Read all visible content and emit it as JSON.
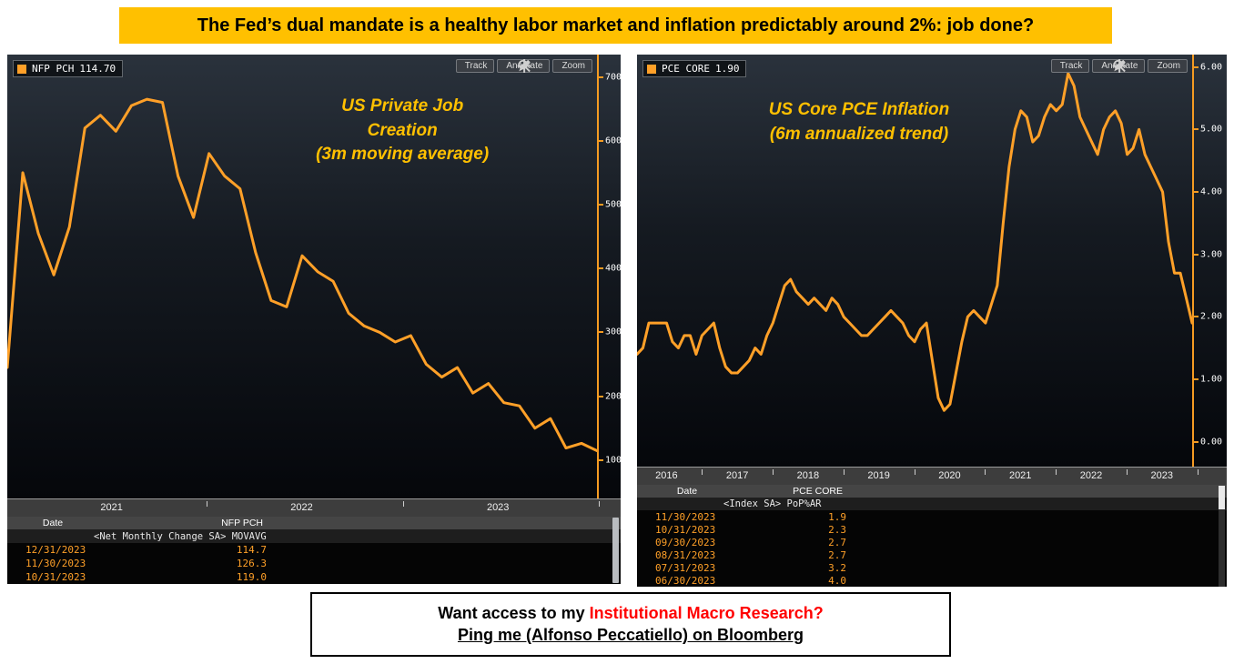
{
  "top_banner": {
    "text": "The Fed’s dual mandate is a healthy labor market and inflation predictably around 2%: job done?"
  },
  "toolbar": {
    "track": "Track",
    "annotate": "Annotate",
    "zoom": "Zoom"
  },
  "left_panel": {
    "legend_name": "NFP PCH",
    "legend_value": "114.70",
    "title_line1": "US Private Job Creation",
    "title_line2": "(3m moving average)",
    "table": {
      "col_date": "Date",
      "col_series": "NFP PCH",
      "sub_header": "<Net Monthly Change SA> MOVAVG",
      "rows": [
        [
          "12/31/2023",
          "114.7"
        ],
        [
          "11/30/2023",
          "126.3"
        ],
        [
          "10/31/2023",
          "119.0"
        ]
      ]
    }
  },
  "right_panel": {
    "legend_name": "PCE CORE",
    "legend_value": "1.90",
    "title_line1": "US Core PCE Inflation",
    "title_line2": "(6m annualized trend)",
    "table": {
      "col_date": "Date",
      "col_series": "PCE CORE",
      "sub_header": "<Index SA> PoP%AR",
      "rows": [
        [
          "11/30/2023",
          "1.9"
        ],
        [
          "10/31/2023",
          "2.3"
        ],
        [
          "09/30/2023",
          "2.7"
        ],
        [
          "08/31/2023",
          "2.7"
        ],
        [
          "07/31/2023",
          "3.2"
        ],
        [
          "06/30/2023",
          "4.0"
        ]
      ]
    }
  },
  "bottom_banner": {
    "line1_prefix": "Want access to my ",
    "line1_highlight": "Institutional Macro Research?",
    "line2": "Ping me (Alfonso Peccatiello) on Bloomberg"
  },
  "colors": {
    "accent_orange": "#FFA028",
    "banner_yellow": "#FFC000",
    "highlight_red": "#FF0000",
    "chart_title_yellow": "#FFC000"
  },
  "chart_data": [
    {
      "type": "line",
      "title": "US Private Job Creation (3m moving average)",
      "xlabel": "",
      "ylabel": "",
      "x_start": "2020-10",
      "x_freq": "monthly",
      "series": [
        {
          "name": "NFP PCH",
          "values": [
            245,
            550,
            455,
            390,
            465,
            620,
            640,
            615,
            655,
            665,
            660,
            545,
            480,
            580,
            545,
            525,
            425,
            350,
            340,
            420,
            395,
            380,
            330,
            310,
            300,
            285,
            295,
            250,
            230,
            245,
            205,
            220,
            190,
            185,
            150,
            165,
            119.0,
            126.3,
            114.7
          ]
        }
      ],
      "last_value": 114.7,
      "ylim": [
        40,
        735
      ],
      "y_ticks": [
        700,
        600,
        500,
        400,
        300,
        200,
        100
      ],
      "y_tick_labels": [
        "700",
        "600",
        "500",
        "400",
        "300",
        "200",
        "100"
      ],
      "x_ticks": [
        {
          "label": "2021",
          "pos": 0.17
        },
        {
          "label": "2022",
          "pos": 0.48
        },
        {
          "label": "2023",
          "pos": 0.8
        }
      ],
      "x_boundaries": [
        0.325,
        0.645,
        0.965
      ],
      "grid": false,
      "legend_position": "top-left",
      "line_color": "#FFA028"
    },
    {
      "type": "line",
      "title": "US Core PCE Inflation (6m annualized trend)",
      "xlabel": "",
      "ylabel": "",
      "x_start": "2016-01",
      "x_freq": "monthly",
      "series": [
        {
          "name": "PCE CORE",
          "values": [
            1.4,
            1.5,
            1.9,
            1.9,
            1.9,
            1.9,
            1.6,
            1.5,
            1.7,
            1.7,
            1.4,
            1.7,
            1.8,
            1.9,
            1.5,
            1.2,
            1.1,
            1.1,
            1.2,
            1.3,
            1.5,
            1.4,
            1.7,
            1.9,
            2.2,
            2.5,
            2.6,
            2.4,
            2.3,
            2.2,
            2.3,
            2.2,
            2.1,
            2.3,
            2.2,
            2.0,
            1.9,
            1.8,
            1.7,
            1.7,
            1.8,
            1.9,
            2.0,
            2.1,
            2.0,
            1.9,
            1.7,
            1.6,
            1.8,
            1.9,
            1.3,
            0.7,
            0.5,
            0.6,
            1.1,
            1.6,
            2.0,
            2.1,
            2.0,
            1.9,
            2.2,
            2.5,
            3.5,
            4.4,
            5.0,
            5.3,
            5.2,
            4.8,
            4.9,
            5.2,
            5.4,
            5.3,
            5.4,
            5.9,
            5.7,
            5.2,
            5.0,
            4.8,
            4.6,
            5.0,
            5.2,
            5.3,
            5.1,
            4.6,
            4.7,
            5.0,
            4.6,
            4.4,
            4.2,
            4.0,
            3.2,
            2.7,
            2.7,
            2.3,
            1.9
          ]
        }
      ],
      "last_value": 1.9,
      "ylim": [
        -0.4,
        6.2
      ],
      "y_ticks": [
        6,
        5,
        4,
        3,
        2,
        1,
        0
      ],
      "y_tick_labels": [
        "6.00",
        "5.00",
        "4.00",
        "3.00",
        "2.00",
        "1.00",
        "0.00"
      ],
      "x_ticks": [
        {
          "label": "2016",
          "pos": 0.05
        },
        {
          "label": "2017",
          "pos": 0.17
        },
        {
          "label": "2018",
          "pos": 0.29
        },
        {
          "label": "2019",
          "pos": 0.41
        },
        {
          "label": "2020",
          "pos": 0.53
        },
        {
          "label": "2021",
          "pos": 0.65
        },
        {
          "label": "2022",
          "pos": 0.77
        },
        {
          "label": "2023",
          "pos": 0.89
        }
      ],
      "x_boundaries": [
        0.11,
        0.23,
        0.35,
        0.47,
        0.59,
        0.71,
        0.83,
        0.95
      ],
      "grid": false,
      "legend_position": "top-left",
      "line_color": "#FFA028"
    }
  ]
}
